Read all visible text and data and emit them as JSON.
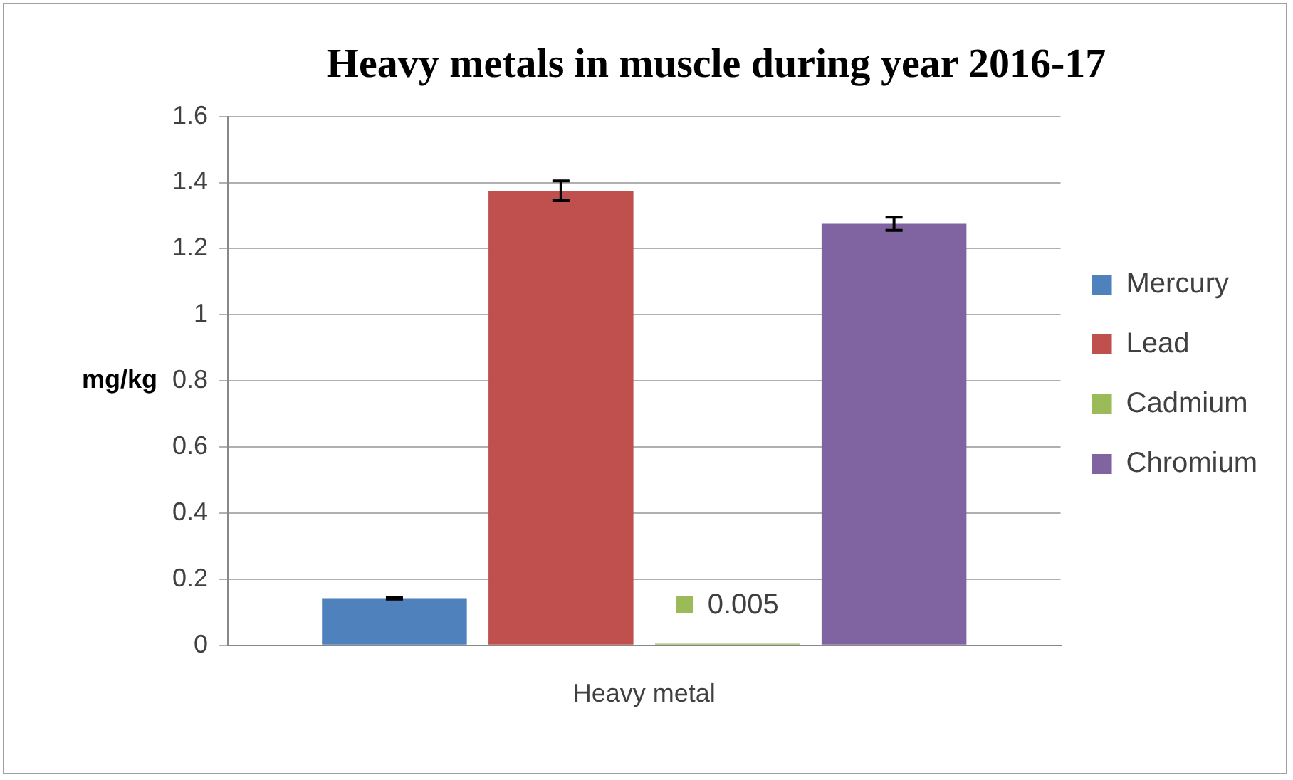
{
  "chart_data": {
    "type": "bar",
    "title": "Heavy metals in muscle during year 2016-17",
    "ylabel": "mg/kg",
    "categories": [
      "Heavy metal"
    ],
    "series": [
      {
        "name": "Mercury",
        "color": "#4f81bd",
        "values": [
          0.143
        ],
        "errors": [
          0.003
        ]
      },
      {
        "name": "Lead",
        "color": "#c0504d",
        "values": [
          1.375
        ],
        "errors": [
          0.03
        ]
      },
      {
        "name": "Cadmium",
        "color": "#9bbb59",
        "values": [
          0.005
        ],
        "value_labels": [
          "0.005"
        ]
      },
      {
        "name": "Chromium",
        "color": "#8064a2",
        "values": [
          1.275
        ],
        "errors": [
          0.02
        ]
      }
    ],
    "ylim": [
      0,
      1.6
    ],
    "yticks": [
      0,
      0.2,
      0.4,
      0.6,
      0.8,
      1,
      1.2,
      1.4,
      1.6
    ],
    "grid": "y",
    "legend": "right"
  }
}
